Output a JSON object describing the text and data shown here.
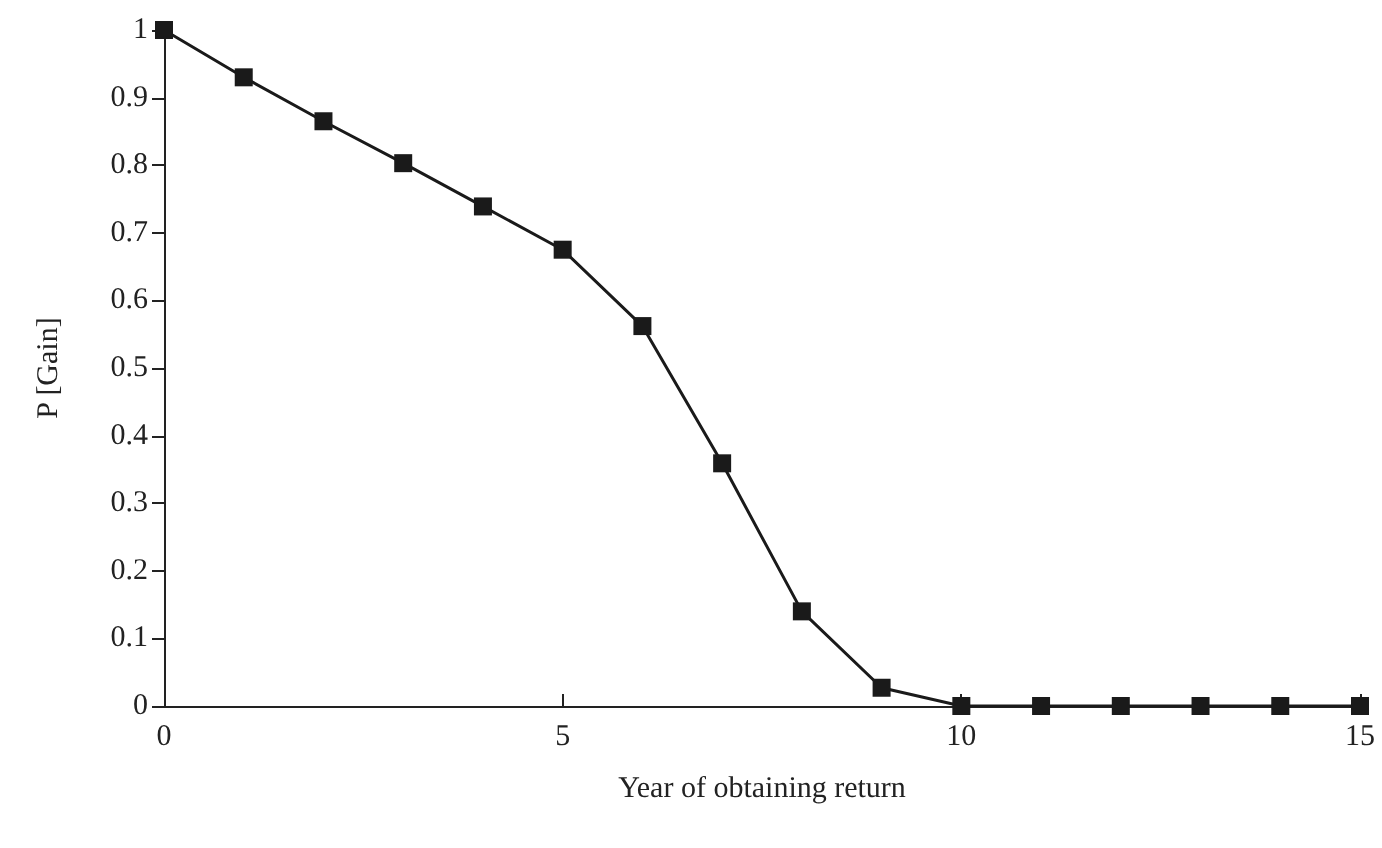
{
  "chart_data": {
    "type": "line",
    "xlabel": "Year of obtaining return",
    "ylabel": "P [Gain]",
    "x": [
      0,
      1,
      2,
      3,
      4,
      5,
      6,
      7,
      8,
      9,
      10,
      11,
      12,
      13,
      14,
      15
    ],
    "series": [
      {
        "color": "#1a1a1a",
        "values": [
          1.0,
          0.93,
          0.865,
          0.803,
          0.739,
          0.675,
          0.562,
          0.359,
          0.14,
          0.027,
          0,
          0,
          0,
          0,
          0,
          0
        ]
      }
    ],
    "xlim": [
      0,
      15
    ],
    "xticks": [
      0,
      5,
      10,
      15
    ],
    "ylim": [
      0,
      1
    ],
    "yticks": [
      0,
      0.1,
      0.2,
      0.3,
      0.4,
      0.5,
      0.6,
      0.7,
      0.8,
      0.9,
      1
    ],
    "grid": false,
    "marker": "square",
    "line_style": "solid"
  }
}
